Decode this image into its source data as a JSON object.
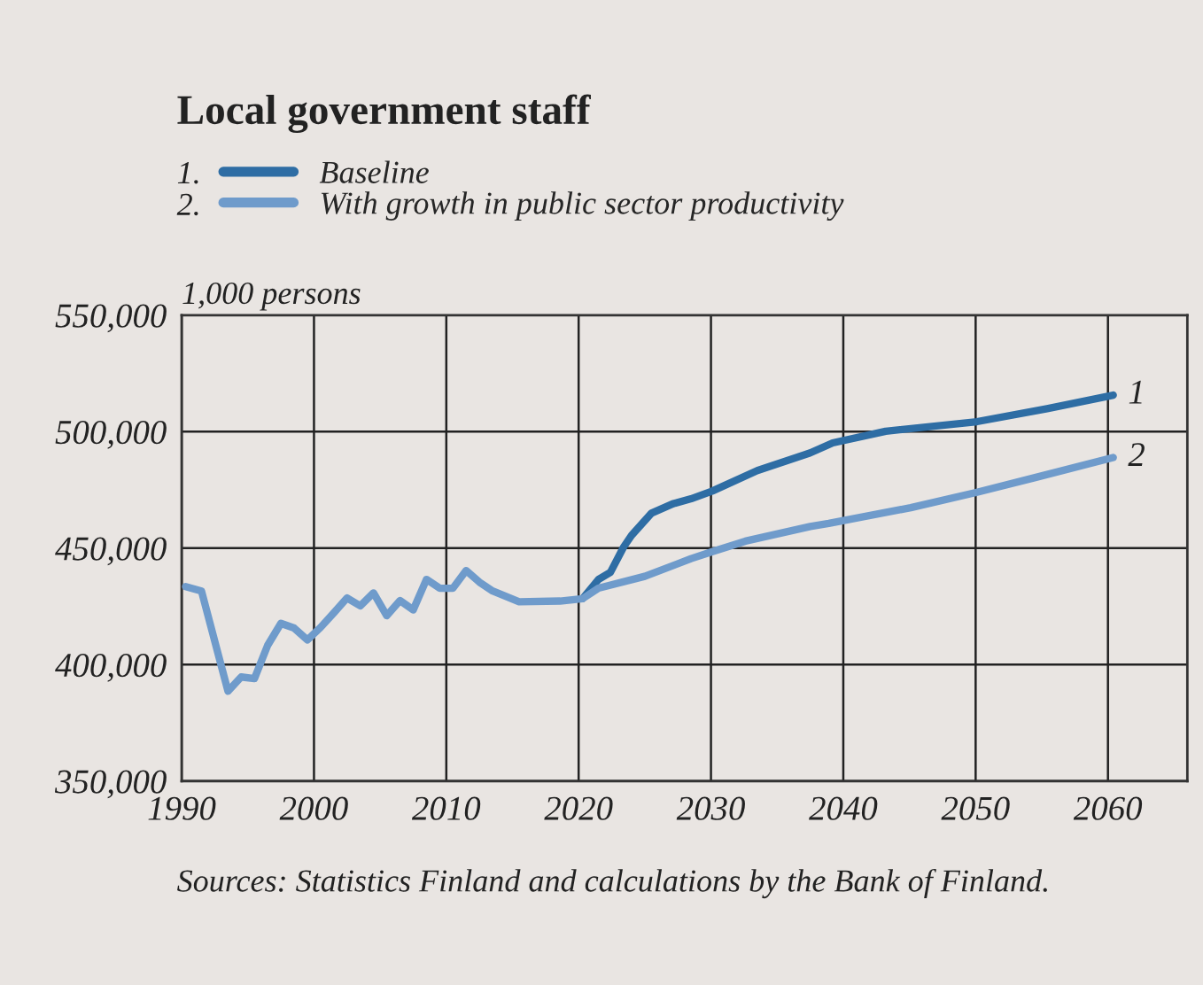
{
  "chart_data": {
    "type": "line",
    "title": "Local government staff",
    "ylabel": "1,000 persons",
    "xlim": [
      1990,
      2066
    ],
    "xticks": [
      1990,
      2000,
      2010,
      2020,
      2030,
      2040,
      2050,
      2060
    ],
    "ylim": [
      350000,
      550000
    ],
    "yticks": [
      {
        "value": 350000,
        "label": "350,000"
      },
      {
        "value": 400000,
        "label": "400,000"
      },
      {
        "value": 450000,
        "label": "450,000"
      },
      {
        "value": 500000,
        "label": "500,000"
      },
      {
        "value": 550000,
        "label": "550,000"
      }
    ],
    "grid": true,
    "legend": "top",
    "marker": "none",
    "line_style": "solid",
    "series": [
      {
        "name": "Baseline",
        "color": "#2e6da4",
        "x": [
          2020.3,
          2021.5,
          2022.4,
          2023.4,
          2024.0,
          2025.5,
          2027.1,
          2028.5,
          2030.1,
          2033.5,
          2037.5,
          2039.2,
          2043.2,
          2050.1,
          2055.4,
          2060.4
        ],
        "values": [
          428300,
          436600,
          439600,
          450500,
          455500,
          465000,
          469000,
          471200,
          474500,
          483300,
          490900,
          495200,
          500200,
          504300,
          509900,
          515700
        ]
      },
      {
        "name": "With growth in public sector productivity",
        "color": "#6f9bcb",
        "x": [
          1990.3,
          1991.5,
          1993.5,
          1994.5,
          1995.5,
          1996.5,
          1997.5,
          1998.5,
          1999.5,
          2000.5,
          2001.5,
          2002.5,
          2003.5,
          2004.5,
          2005.5,
          2006.5,
          2007.5,
          2008.5,
          2009.5,
          2010.5,
          2011.5,
          2012.5,
          2013.5,
          2015.5,
          2018.6,
          2020.3,
          2021.5,
          2025.0,
          2028.5,
          2030.1,
          2032.6,
          2037.5,
          2038.9,
          2045.1,
          2050.1,
          2054.5,
          2060.4
        ],
        "values": [
          433500,
          431600,
          388600,
          394700,
          394000,
          408300,
          417700,
          415700,
          410600,
          416000,
          422200,
          428600,
          425200,
          430800,
          421000,
          427500,
          423500,
          436600,
          432800,
          432800,
          440400,
          435400,
          431600,
          427000,
          427300,
          428300,
          432800,
          437900,
          445500,
          448500,
          453000,
          459300,
          460600,
          467400,
          474000,
          480300,
          488900
        ]
      }
    ],
    "annotations": [
      {
        "text": "1",
        "x": 2060.4,
        "y": 515700
      },
      {
        "text": "2",
        "x": 2060.4,
        "y": 488900
      },
      "1.",
      "2.",
      "Sources: Statistics Finland and calculations by the Bank of Finland."
    ]
  }
}
